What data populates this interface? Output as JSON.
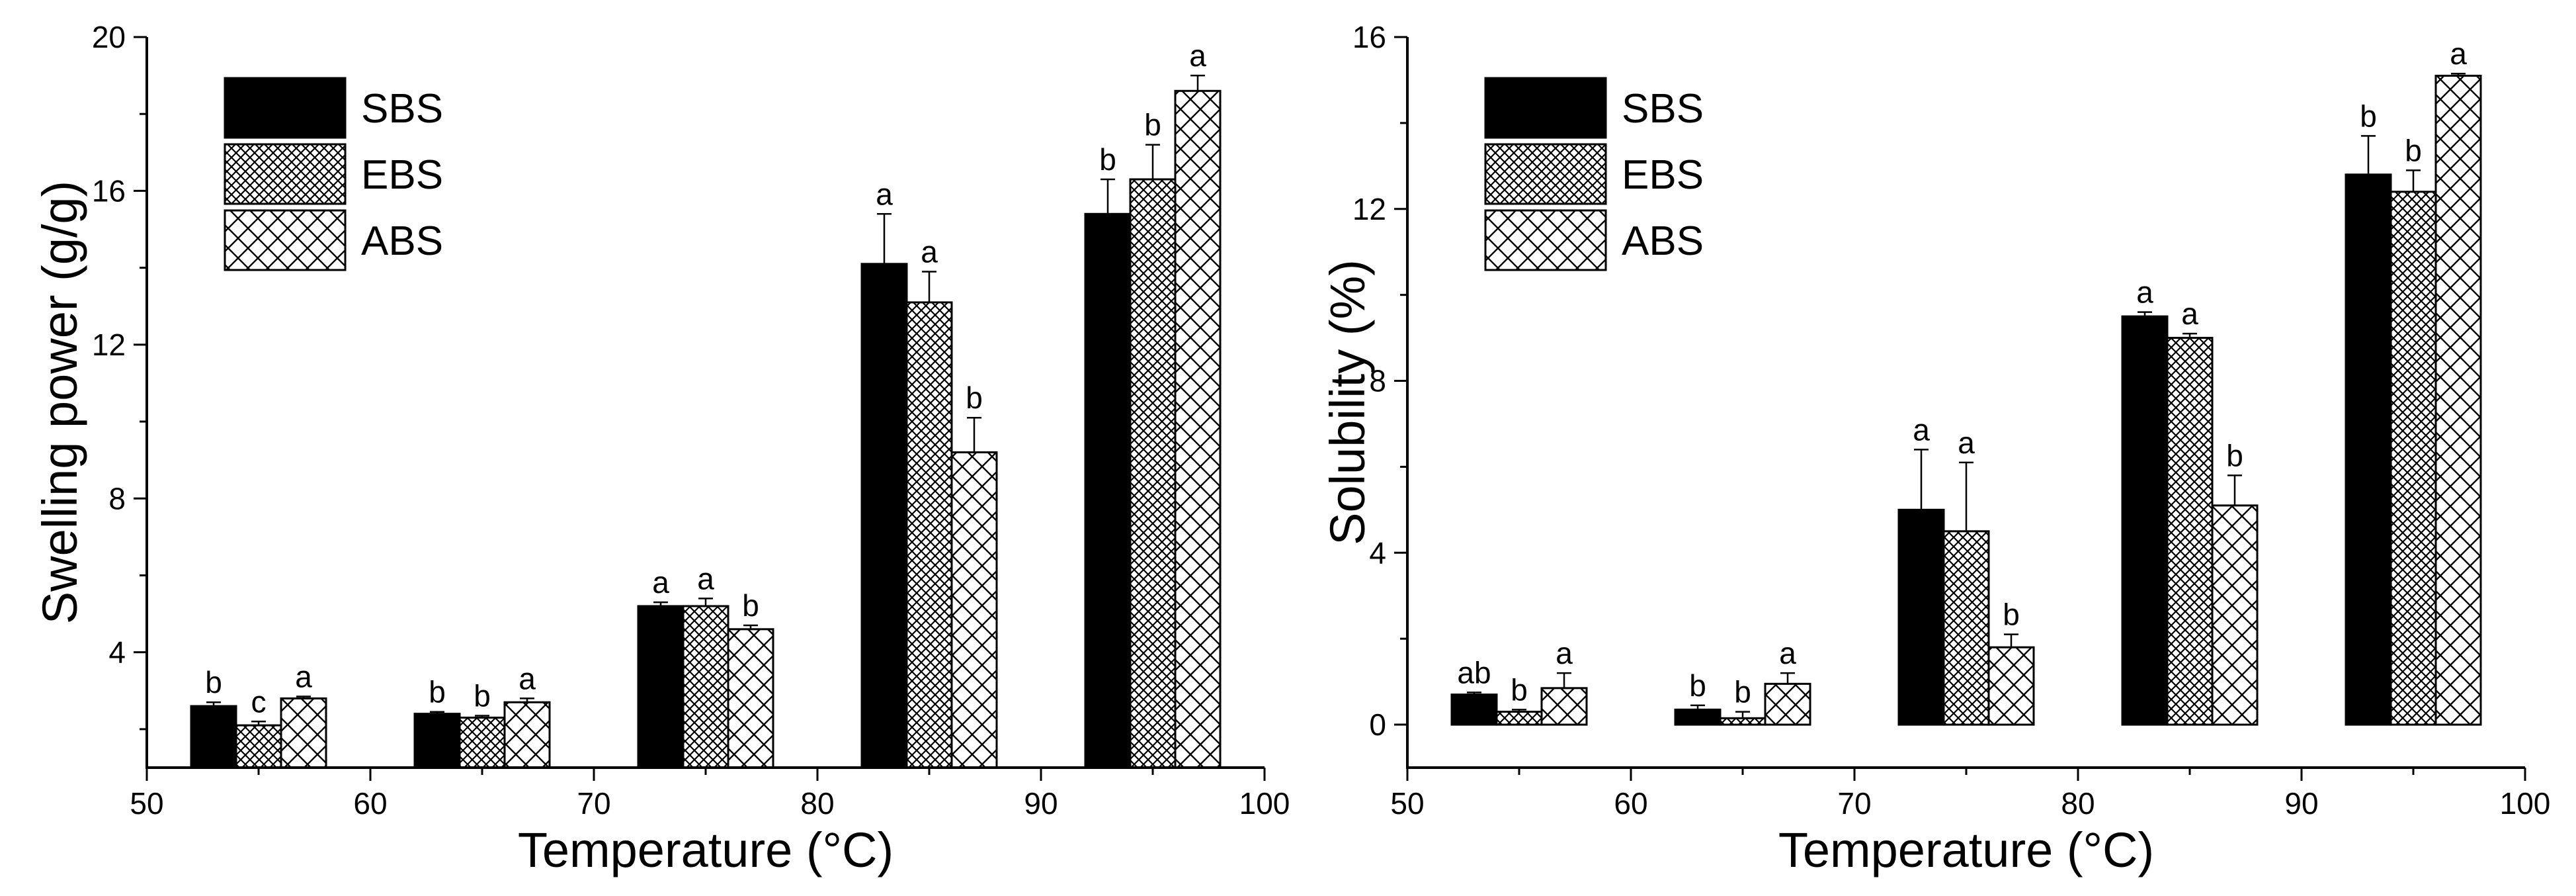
{
  "figure": {
    "series_names": [
      "SBS",
      "EBS",
      "ABS"
    ],
    "series_colors": [
      "#000000",
      "#ffffff",
      "#ffffff"
    ],
    "series_patterns": [
      "solid",
      "dense-crosshatch",
      "sparse-crosshatch"
    ]
  },
  "chart_data": [
    {
      "type": "bar",
      "title": "",
      "xlabel": "Temperature (°C)",
      "ylabel": "Swelling power (g/g)",
      "xlim": [
        50,
        100
      ],
      "ylim": [
        1,
        20
      ],
      "xticks": [
        50,
        60,
        70,
        80,
        90,
        100
      ],
      "yticks": [
        4,
        8,
        12,
        16,
        20
      ],
      "legend_position": "top-left",
      "categories": [
        55,
        65,
        75,
        85,
        95
      ],
      "series": [
        {
          "name": "SBS",
          "values": [
            2.6,
            2.4,
            5.2,
            14.1,
            15.4
          ],
          "errors": [
            0.1,
            0.05,
            0.1,
            1.3,
            0.9
          ],
          "labels": [
            "b",
            "b",
            "a",
            "a",
            "b"
          ]
        },
        {
          "name": "EBS",
          "values": [
            2.1,
            2.3,
            5.2,
            13.1,
            16.3
          ],
          "errors": [
            0.1,
            0.05,
            0.2,
            0.8,
            0.9
          ],
          "labels": [
            "c",
            "b",
            "a",
            "a",
            "b"
          ]
        },
        {
          "name": "ABS",
          "values": [
            2.8,
            2.7,
            4.6,
            9.2,
            18.6
          ],
          "errors": [
            0.05,
            0.1,
            0.1,
            0.9,
            0.4
          ],
          "labels": [
            "a",
            "a",
            "b",
            "b",
            "a"
          ]
        }
      ]
    },
    {
      "type": "bar",
      "title": "",
      "xlabel": "Temperature (°C)",
      "ylabel": "Solubility (%)",
      "xlim": [
        50,
        100
      ],
      "ylim": [
        -1,
        16
      ],
      "xticks": [
        50,
        60,
        70,
        80,
        90,
        100
      ],
      "yticks": [
        0,
        4,
        8,
        12,
        16
      ],
      "legend_position": "top-left",
      "categories": [
        55,
        65,
        75,
        85,
        95
      ],
      "series": [
        {
          "name": "SBS",
          "values": [
            0.7,
            0.35,
            5.0,
            9.5,
            12.8
          ],
          "errors": [
            0.05,
            0.1,
            1.4,
            0.1,
            0.9
          ],
          "labels": [
            "ab",
            "b",
            "a",
            "a",
            "b"
          ]
        },
        {
          "name": "EBS",
          "values": [
            0.3,
            0.15,
            4.5,
            9.0,
            12.4
          ],
          "errors": [
            0.05,
            0.15,
            1.6,
            0.1,
            0.5
          ],
          "labels": [
            "b",
            "b",
            "a",
            "a",
            "b"
          ]
        },
        {
          "name": "ABS",
          "values": [
            0.85,
            0.95,
            1.8,
            5.1,
            15.1
          ],
          "errors": [
            0.35,
            0.25,
            0.3,
            0.7,
            0.05
          ],
          "labels": [
            "a",
            "a",
            "b",
            "b",
            "a"
          ]
        }
      ]
    }
  ]
}
